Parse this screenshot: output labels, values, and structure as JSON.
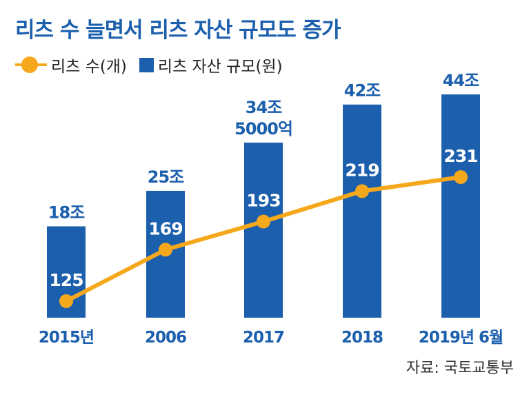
{
  "title": "리츠 수 늘면서 리츠 자산 규모도 증가",
  "legend": {
    "line_label": "리츠 수(개)",
    "bar_label": "리츠 자산 규모(원)"
  },
  "source": "자료: 국토교통부",
  "colors": {
    "bar": "#1b5fad",
    "line": "#f6a81d",
    "text_blue": "#1b5fad"
  },
  "chart_data": {
    "type": "bar",
    "title": "리츠 수 늘면서 리츠 자산 규모도 증가",
    "categories": [
      "2015년",
      "2006",
      "2017",
      "2018",
      "2019년 6월"
    ],
    "series": [
      {
        "name": "리츠 자산 규모(원)",
        "type": "bar",
        "values": [
          18,
          25,
          34.5,
          42,
          44
        ],
        "labels": [
          [
            "18조"
          ],
          [
            "25조"
          ],
          [
            "34조",
            "5000억"
          ],
          [
            "42조"
          ],
          [
            "44조"
          ]
        ]
      },
      {
        "name": "리츠 수(개)",
        "type": "line",
        "values": [
          125,
          169,
          193,
          219,
          231
        ],
        "labels": [
          "125",
          "169",
          "193",
          "219",
          "231"
        ]
      }
    ],
    "grid": false,
    "legend_position": "top-left"
  }
}
